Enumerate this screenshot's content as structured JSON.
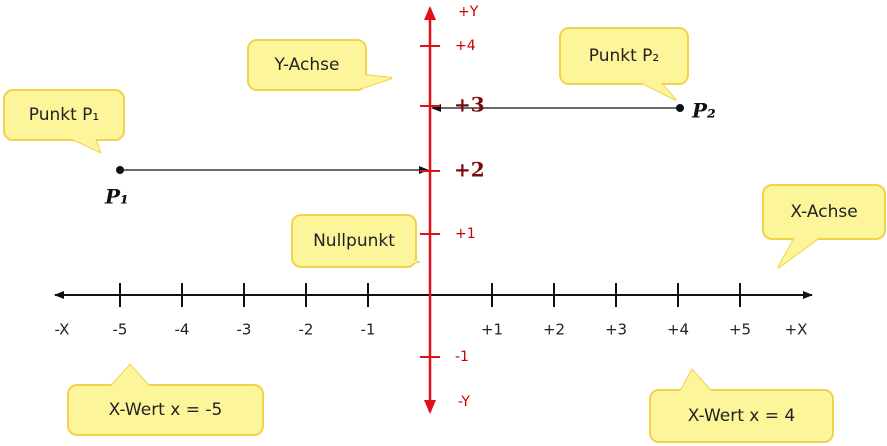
{
  "callouts": [
    {
      "text": "Punkt P₁"
    },
    {
      "text": "Y-Achse"
    },
    {
      "text": "Punkt P₂"
    },
    {
      "text": "Nullpunkt"
    },
    {
      "text": "X-Achse"
    },
    {
      "text": "X-Wert x = -5"
    },
    {
      "text": "X-Wert x = 4"
    }
  ],
  "x_axis": {
    "labels": [
      "-X",
      "-5",
      "-4",
      "-3",
      "-2",
      "-1",
      "+1",
      "+2",
      "+3",
      "+4",
      "+5",
      "+X"
    ]
  },
  "y_axis": {
    "labels": [
      "+Y",
      "+4",
      "+3",
      "+2",
      "+1",
      "-1",
      "-Y"
    ]
  },
  "points": [
    {
      "label": "P₁"
    },
    {
      "label": "P₂"
    }
  ]
}
